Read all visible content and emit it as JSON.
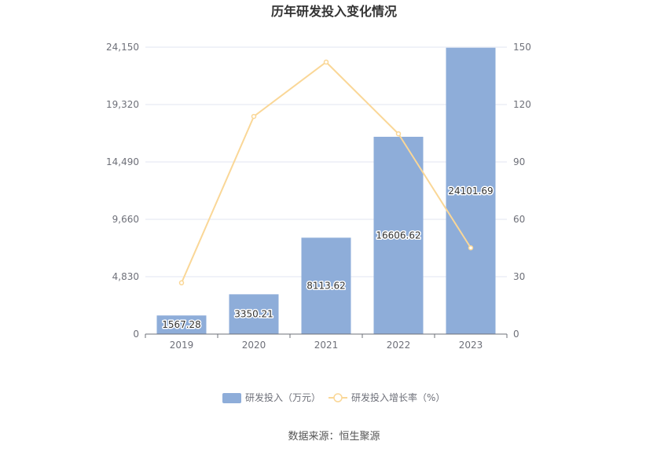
{
  "chart_data": {
    "type": "bar",
    "title": "历年研发投入变化情况",
    "categories": [
      "2019",
      "2020",
      "2021",
      "2022",
      "2023"
    ],
    "series": [
      {
        "name": "研发投入（万元）",
        "type": "bar",
        "axis": "left",
        "values": [
          1567.28,
          3350.21,
          8113.62,
          16606.62,
          24101.69
        ],
        "labels": [
          "1567.28",
          "3350.21",
          "8113.62",
          "16606.62",
          "24101.69"
        ],
        "color": "#8eadd9"
      },
      {
        "name": "研发投入增长率（%）",
        "type": "line",
        "axis": "right",
        "values": [
          26.8,
          113.8,
          142.2,
          104.7,
          45.1
        ],
        "color": "#fad797"
      }
    ],
    "y_left": {
      "ylim": [
        0,
        24150
      ],
      "ticks": [
        "0",
        "4,830",
        "9,660",
        "14,490",
        "19,320",
        "24,150"
      ]
    },
    "y_right": {
      "ylim": [
        0,
        150
      ],
      "ticks": [
        "0",
        "30",
        "60",
        "90",
        "120",
        "150"
      ]
    },
    "grid": true,
    "legend": "bottom-center"
  },
  "source": "数据来源：恒生聚源"
}
